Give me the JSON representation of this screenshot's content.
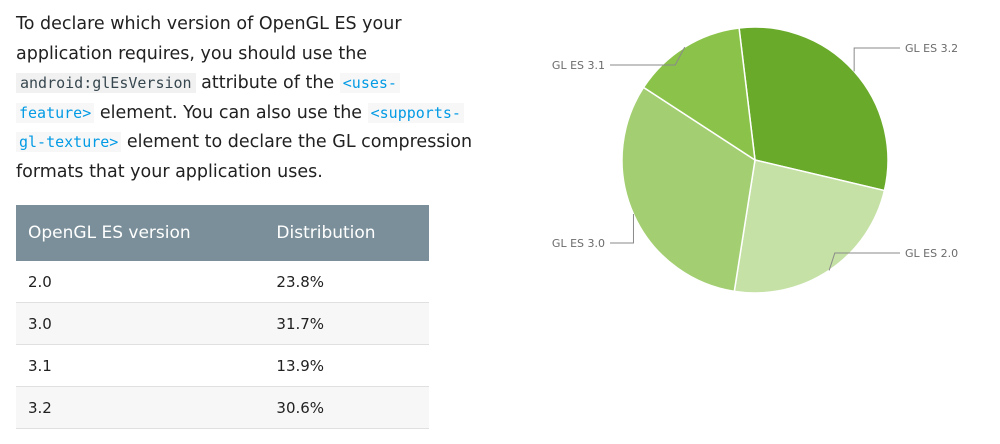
{
  "text": {
    "line1": "To declare which version of OpenGL ES your",
    "line2": "application requires, you should use the",
    "code_attr": "android:glEsVersion",
    "line3_mid": " attribute of the ",
    "link_uses_a": "<uses-",
    "link_uses_b": "feature>",
    "line4_mid": " element. You can also use the ",
    "link_supports_a": "<supports-",
    "link_supports_b": "gl-texture>",
    "line5_end": " element to declare the GL compression",
    "line6": "formats that your application uses."
  },
  "table": {
    "headers": [
      "OpenGL ES version",
      "Distribution"
    ],
    "rows": [
      [
        "2.0",
        "23.8%"
      ],
      [
        "3.0",
        "31.7%"
      ],
      [
        "3.1",
        "13.9%"
      ],
      [
        "3.2",
        "30.6%"
      ]
    ]
  },
  "chart_data": {
    "type": "pie",
    "slices": [
      {
        "label": "GL ES 3.2",
        "value": 30.6,
        "color": "#6aaa2a"
      },
      {
        "label": "GL ES 2.0",
        "value": 23.8,
        "color": "#c5e1a5"
      },
      {
        "label": "GL ES 3.0",
        "value": 31.7,
        "color": "#a3cf72"
      },
      {
        "label": "GL ES 3.1",
        "value": 13.9,
        "color": "#8bc34a"
      }
    ]
  }
}
